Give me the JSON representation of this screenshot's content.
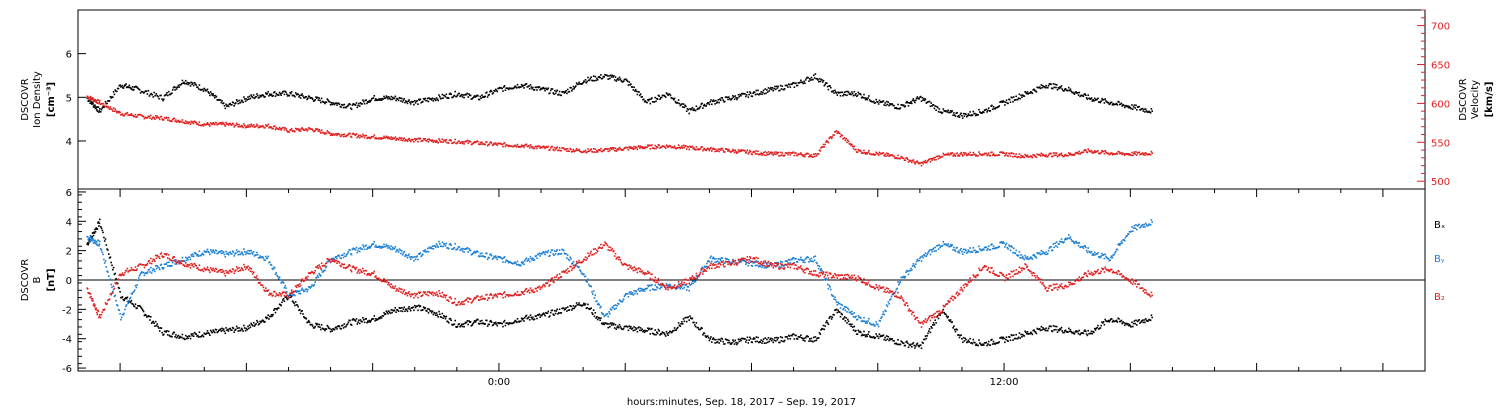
{
  "colors": {
    "black": "#000000",
    "red": "#e02020",
    "blue": "#1a7fd4"
  },
  "chart_data": [
    {
      "type": "scatter",
      "panel": "plasma",
      "ylabel": [
        "DSCOVR",
        "Ion Density",
        "[cm⁻³]"
      ],
      "ylim": [
        2.9,
        7.0
      ],
      "yticks": [
        4,
        5,
        6
      ],
      "ylim_right": [
        490,
        720
      ],
      "yticks_right": [
        500,
        550,
        600,
        650,
        700
      ],
      "ylabel_right": [
        "DSCOVR",
        "Velocity",
        "[km/s]"
      ],
      "series": [
        {
          "color": "#000000",
          "axis": "left",
          "x": [
            -9.8,
            -9.5,
            -9.0,
            -8.6,
            -8.0,
            -7.5,
            -7.0,
            -6.5,
            -6.0,
            -5.5,
            -5.0,
            -4.5,
            -4.0,
            -3.5,
            -3.0,
            -2.5,
            -2.0,
            -1.5,
            -1.0,
            -0.5,
            0.0,
            0.5,
            1.0,
            1.5,
            2.0,
            2.5,
            3.0,
            3.5,
            4.0,
            4.5,
            5.0,
            5.5,
            6.0,
            6.5,
            7.0,
            7.5,
            8.0,
            8.5,
            9.0,
            9.5,
            10.0,
            10.5,
            11.0,
            11.5,
            12.0,
            12.5,
            13.0,
            13.5,
            14.0,
            14.5,
            15.0,
            15.5
          ],
          "y": [
            5.0,
            4.7,
            5.3,
            5.2,
            5.0,
            5.4,
            5.2,
            4.8,
            5.0,
            5.1,
            5.1,
            5.0,
            4.9,
            4.8,
            5.0,
            5.0,
            4.9,
            5.0,
            5.1,
            5.0,
            5.2,
            5.3,
            5.2,
            5.1,
            5.4,
            5.5,
            5.4,
            4.9,
            5.1,
            4.7,
            4.9,
            5.0,
            5.1,
            5.2,
            5.3,
            5.5,
            5.1,
            5.1,
            4.9,
            4.8,
            5.0,
            4.7,
            4.6,
            4.7,
            4.9,
            5.1,
            5.3,
            5.2,
            5.0,
            4.9,
            4.8,
            4.7
          ]
        },
        {
          "color": "#e02020",
          "axis": "right",
          "x": [
            -9.8,
            -9.5,
            -9.0,
            -8.5,
            -8.0,
            -7.5,
            -7.0,
            -6.5,
            -6.0,
            -5.5,
            -5.0,
            -4.5,
            -4.0,
            -3.5,
            -3.0,
            -2.5,
            -2.0,
            -1.5,
            -1.0,
            -0.5,
            0.0,
            0.5,
            1.0,
            1.5,
            2.0,
            2.5,
            3.0,
            3.5,
            4.0,
            4.5,
            5.0,
            5.5,
            6.0,
            6.5,
            7.0,
            7.5,
            8.0,
            8.5,
            9.0,
            9.5,
            10.0,
            10.5,
            11.0,
            11.5,
            12.0,
            12.5,
            13.0,
            13.5,
            14.0,
            14.5,
            15.0,
            15.5
          ],
          "y": [
            610,
            602,
            588,
            584,
            582,
            578,
            574,
            574,
            572,
            572,
            566,
            568,
            562,
            560,
            558,
            556,
            554,
            553,
            552,
            550,
            548,
            547,
            544,
            542,
            540,
            541,
            543,
            545,
            546,
            544,
            542,
            540,
            538,
            536,
            536,
            534,
            565,
            540,
            536,
            532,
            523,
            534,
            536,
            536,
            536,
            533,
            535,
            535,
            540,
            537,
            536,
            537
          ]
        }
      ]
    },
    {
      "type": "scatter",
      "panel": "magnetic field",
      "ylabel": [
        "DSCOVR",
        "B",
        "[nT]"
      ],
      "ylim": [
        -6.2,
        6.2
      ],
      "yticks": [
        -6,
        -4,
        -2,
        0,
        2,
        4,
        6
      ],
      "xlabel": "hours:minutes, Sep. 18, 2017 – Sep. 19, 2017",
      "xlim": [
        -10,
        22
      ],
      "xtick_labels": [
        {
          "x": 0,
          "label": "0:00"
        },
        {
          "x": 12,
          "label": "12:00"
        }
      ],
      "series": [
        {
          "name": "Bₓ",
          "color": "#000000",
          "x": [
            -9.8,
            -9.5,
            -9.0,
            -8.5,
            -8.0,
            -7.5,
            -7.0,
            -6.5,
            -6.0,
            -5.5,
            -5.0,
            -4.5,
            -4.0,
            -3.5,
            -3.0,
            -2.5,
            -2.0,
            -1.5,
            -1.0,
            -0.5,
            0.0,
            0.5,
            1.0,
            1.5,
            2.0,
            2.5,
            3.0,
            3.5,
            4.0,
            4.5,
            5.0,
            5.5,
            6.0,
            6.5,
            7.0,
            7.5,
            8.0,
            8.5,
            9.0,
            9.5,
            10.0,
            10.5,
            11.0,
            11.5,
            12.0,
            12.5,
            13.0,
            13.5,
            14.0,
            14.5,
            15.0,
            15.5
          ],
          "y": [
            2.5,
            4.0,
            -1.0,
            -2.0,
            -3.5,
            -3.8,
            -3.6,
            -3.4,
            -3.2,
            -2.5,
            -1.0,
            -3.0,
            -3.3,
            -2.8,
            -2.6,
            -2.0,
            -1.8,
            -2.2,
            -3.0,
            -2.8,
            -3.0,
            -2.6,
            -2.4,
            -2.0,
            -1.5,
            -3.0,
            -3.2,
            -3.4,
            -3.6,
            -2.5,
            -4.0,
            -4.2,
            -4.0,
            -4.1,
            -3.8,
            -4.0,
            -2.0,
            -3.5,
            -3.8,
            -4.2,
            -4.5,
            -2.0,
            -4.0,
            -4.3,
            -4.0,
            -3.6,
            -3.2,
            -3.4,
            -3.6,
            -2.6,
            -3.0,
            -2.5
          ]
        },
        {
          "name": "Bᵧ",
          "color": "#1a7fd4",
          "x": [
            -9.8,
            -9.5,
            -9.0,
            -8.5,
            -8.0,
            -7.5,
            -7.0,
            -6.5,
            -6.0,
            -5.5,
            -5.0,
            -4.5,
            -4.0,
            -3.5,
            -3.0,
            -2.5,
            -2.0,
            -1.5,
            -1.0,
            -0.5,
            0.0,
            0.5,
            1.0,
            1.5,
            2.0,
            2.5,
            3.0,
            3.5,
            4.0,
            4.5,
            5.0,
            5.5,
            6.0,
            6.5,
            7.0,
            7.5,
            8.0,
            8.5,
            9.0,
            9.5,
            10.0,
            10.5,
            11.0,
            11.5,
            12.0,
            12.5,
            13.0,
            13.5,
            14.0,
            14.5,
            15.0,
            15.5
          ],
          "y": [
            3.0,
            2.5,
            -2.5,
            0.5,
            1.0,
            1.5,
            2.0,
            1.8,
            2.0,
            1.5,
            -1.0,
            -0.5,
            1.5,
            2.0,
            2.5,
            2.2,
            1.5,
            2.5,
            2.3,
            1.8,
            1.5,
            1.2,
            1.8,
            2.0,
            0.5,
            -2.5,
            -1.0,
            -0.5,
            -0.3,
            -0.5,
            1.5,
            1.3,
            1.2,
            1.0,
            1.4,
            1.5,
            -1.5,
            -2.5,
            -3.0,
            0.0,
            1.5,
            2.5,
            2.0,
            2.2,
            2.5,
            1.5,
            2.0,
            3.0,
            2.0,
            1.5,
            3.5,
            4.0
          ]
        },
        {
          "name": "B₂",
          "color": "#e02020",
          "x": [
            -9.8,
            -9.5,
            -9.0,
            -8.5,
            -8.0,
            -7.5,
            -7.0,
            -6.5,
            -6.0,
            -5.5,
            -5.0,
            -4.5,
            -4.0,
            -3.5,
            -3.0,
            -2.5,
            -2.0,
            -1.5,
            -1.0,
            -0.5,
            0.0,
            0.5,
            1.0,
            1.5,
            2.0,
            2.5,
            3.0,
            3.5,
            4.0,
            4.5,
            5.0,
            5.5,
            6.0,
            6.5,
            7.0,
            7.5,
            8.0,
            8.5,
            9.0,
            9.5,
            10.0,
            10.5,
            11.0,
            11.5,
            12.0,
            12.5,
            13.0,
            13.5,
            14.0,
            14.5,
            15.0,
            15.5
          ],
          "y": [
            -0.5,
            -2.5,
            0.5,
            1.0,
            1.8,
            1.2,
            0.8,
            0.5,
            1.0,
            -0.8,
            -1.0,
            0.5,
            1.5,
            0.8,
            0.5,
            -0.5,
            -1.0,
            -0.8,
            -1.5,
            -1.2,
            -1.0,
            -0.8,
            -0.5,
            0.5,
            1.5,
            2.5,
            1.0,
            0.5,
            -0.5,
            0.0,
            1.0,
            1.2,
            1.5,
            1.0,
            1.0,
            0.5,
            0.3,
            0.2,
            -0.5,
            -1.0,
            -3.0,
            -2.0,
            -0.5,
            1.0,
            0.2,
            1.0,
            -0.5,
            -0.3,
            0.5,
            0.8,
            0.0,
            -1.0
          ]
        }
      ]
    }
  ]
}
